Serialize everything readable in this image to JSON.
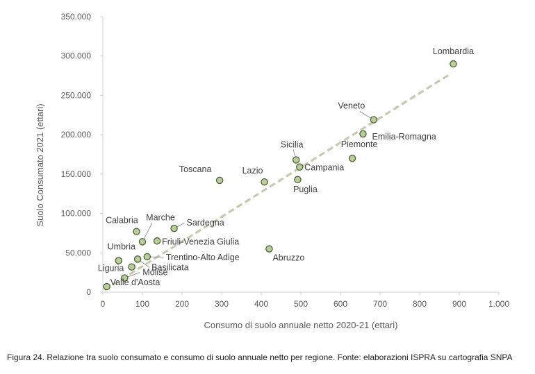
{
  "chart_data": {
    "type": "scatter",
    "xlabel": "Consumo di suolo annuale netto 2020-21 (ettari)",
    "ylabel": "Suolo Consumato 2021 (ettari)",
    "xlim": [
      0,
      1000
    ],
    "ylim": [
      0,
      350000
    ],
    "x_ticks": [
      "0",
      "100",
      "200",
      "300",
      "400",
      "500",
      "600",
      "700",
      "800",
      "900",
      "1.000"
    ],
    "y_ticks": [
      "0",
      "50.000",
      "100.000",
      "150.000",
      "200.000",
      "250.000",
      "300.000",
      "350.000"
    ],
    "grid": false,
    "trendline": {
      "style": "dashed",
      "x": [
        5,
        880
      ],
      "y": [
        3000,
        278000
      ]
    },
    "colors": {
      "marker_fill": "#b8cf9a",
      "marker_stroke": "#4f5f3a",
      "trend": "#c8c9b0",
      "axis": "#d0d0d0"
    },
    "points": [
      {
        "name": "Lombardia",
        "x": 885,
        "y": 290000
      },
      {
        "name": "Veneto",
        "x": 684,
        "y": 219000
      },
      {
        "name": "Emilia-Romagna",
        "x": 657,
        "y": 201000
      },
      {
        "name": "Piemonte",
        "x": 630,
        "y": 170000
      },
      {
        "name": "Sicilia",
        "x": 488,
        "y": 168000
      },
      {
        "name": "Campania",
        "x": 497,
        "y": 159000
      },
      {
        "name": "Puglia",
        "x": 492,
        "y": 143000
      },
      {
        "name": "Lazio",
        "x": 408,
        "y": 140000
      },
      {
        "name": "Toscana",
        "x": 295,
        "y": 142000
      },
      {
        "name": "Abruzzo",
        "x": 420,
        "y": 55000
      },
      {
        "name": "Sardegna",
        "x": 180,
        "y": 81000
      },
      {
        "name": "Calabria",
        "x": 85,
        "y": 77000
      },
      {
        "name": "Marche",
        "x": 100,
        "y": 64000
      },
      {
        "name": "Friuli-Venezia Giulia",
        "x": 137,
        "y": 65000
      },
      {
        "name": "Trentino-Alto Adige",
        "x": 112,
        "y": 45000
      },
      {
        "name": "Umbria",
        "x": 40,
        "y": 40000
      },
      {
        "name": "Basilicata",
        "x": 88,
        "y": 42000
      },
      {
        "name": "Liguria",
        "x": 73,
        "y": 32000
      },
      {
        "name": "Molise",
        "x": 55,
        "y": 18000
      },
      {
        "name": "Valle d'Aosta",
        "x": 10,
        "y": 7000
      }
    ]
  },
  "caption": "Figura 24. Relazione tra suolo consumato e consumo di suolo annuale netto per regione. Fonte: elaborazioni ISPRA su cartografia SNPA"
}
